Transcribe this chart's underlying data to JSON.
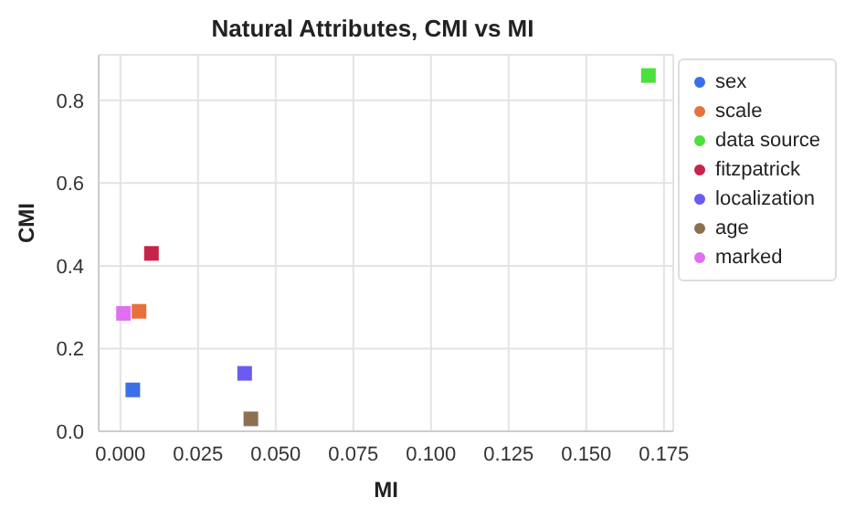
{
  "chart_data": {
    "type": "scatter",
    "title": "Natural Attributes, CMI vs MI",
    "xlabel": "MI",
    "ylabel": "CMI",
    "xlim": [
      -0.007,
      0.178
    ],
    "xticks": [
      {
        "value": 0,
        "label": "0.000"
      },
      {
        "value": 0.025,
        "label": "0.025"
      },
      {
        "value": 0.05,
        "label": "0.050"
      },
      {
        "value": 0.075,
        "label": "0.075"
      },
      {
        "value": 0.1,
        "label": "0.100"
      },
      {
        "value": 0.125,
        "label": "0.125"
      },
      {
        "value": 0.15,
        "label": "0.150"
      },
      {
        "value": 0.175,
        "label": "0.175"
      }
    ],
    "ylim": [
      0,
      0.91
    ],
    "yticks": [
      {
        "value": 0,
        "label": "0.0"
      },
      {
        "value": 0.2,
        "label": "0.2"
      },
      {
        "value": 0.4,
        "label": "0.4"
      },
      {
        "value": 0.6,
        "label": "0.6"
      },
      {
        "value": 0.8,
        "label": "0.8"
      }
    ],
    "grid": true,
    "legend": "right",
    "marker": "square",
    "series": [
      {
        "name": "sex",
        "color": "#3b6fe8",
        "x": [
          0.004
        ],
        "values": [
          0.1
        ]
      },
      {
        "name": "scale",
        "color": "#e8703a",
        "x": [
          0.006
        ],
        "values": [
          0.29
        ]
      },
      {
        "name": "data source",
        "color": "#4be03c",
        "x": [
          0.17
        ],
        "values": [
          0.86
        ]
      },
      {
        "name": "fitzpatrick",
        "color": "#c8234a",
        "x": [
          0.01
        ],
        "values": [
          0.43
        ]
      },
      {
        "name": "localization",
        "color": "#6a5cf0",
        "x": [
          0.04
        ],
        "values": [
          0.14
        ]
      },
      {
        "name": "age",
        "color": "#8c7050",
        "x": [
          0.042
        ],
        "values": [
          0.03
        ]
      },
      {
        "name": "marked",
        "color": "#e070f0",
        "x": [
          0.001
        ],
        "values": [
          0.285
        ]
      }
    ]
  }
}
